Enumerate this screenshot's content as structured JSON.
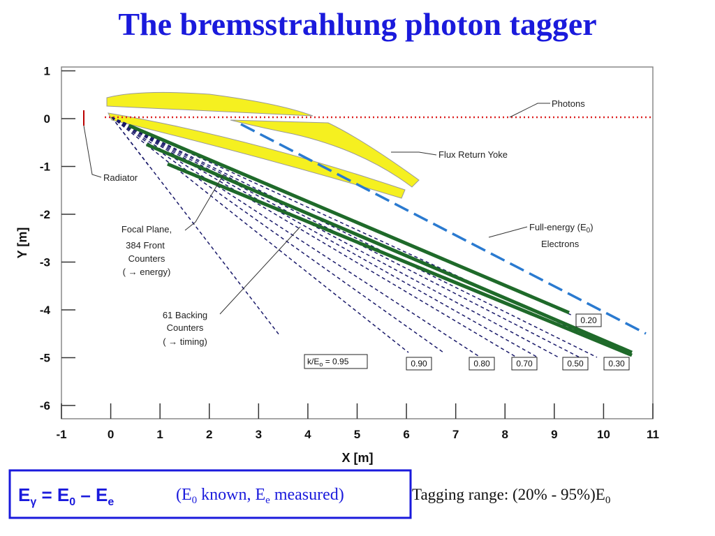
{
  "title": "The bremsstrahlung photon tagger",
  "plot": {
    "xlabel": "X [m]",
    "ylabel": "Y [m]",
    "xlim": [
      -1,
      11
    ],
    "ylim": [
      -6.2,
      1.1
    ],
    "xticks": [
      -1,
      0,
      1,
      2,
      3,
      4,
      5,
      6,
      7,
      8,
      9,
      10,
      11
    ],
    "yticks": [
      1,
      0,
      -1,
      -2,
      -3,
      -4,
      -5,
      -6
    ]
  },
  "annotations": {
    "photons": "Photons",
    "yoke": "Flux Return Yoke",
    "radiator": "Radiator",
    "focal_plane": [
      "Focal Plane,",
      "384 Front",
      "Counters",
      "( → energy)"
    ],
    "backing": [
      "61 Backing",
      "Counters",
      "( → timing)"
    ],
    "full_energy": [
      "Full-energy (E",
      "0",
      ")",
      "Electrons"
    ],
    "k_label": [
      "k/E",
      "o",
      " = 0.95"
    ],
    "boxes": [
      "0.90",
      "0.80",
      "0.70",
      "0.50",
      "0.30",
      "0.20"
    ]
  },
  "footer": {
    "formula": [
      "E",
      "γ",
      " = E",
      "0",
      " – E",
      "e"
    ],
    "note": [
      "(E",
      "0",
      " known,  E",
      "e",
      " measured)"
    ],
    "range": [
      "Tagging range: (20% - 95%)E",
      "0"
    ]
  }
}
